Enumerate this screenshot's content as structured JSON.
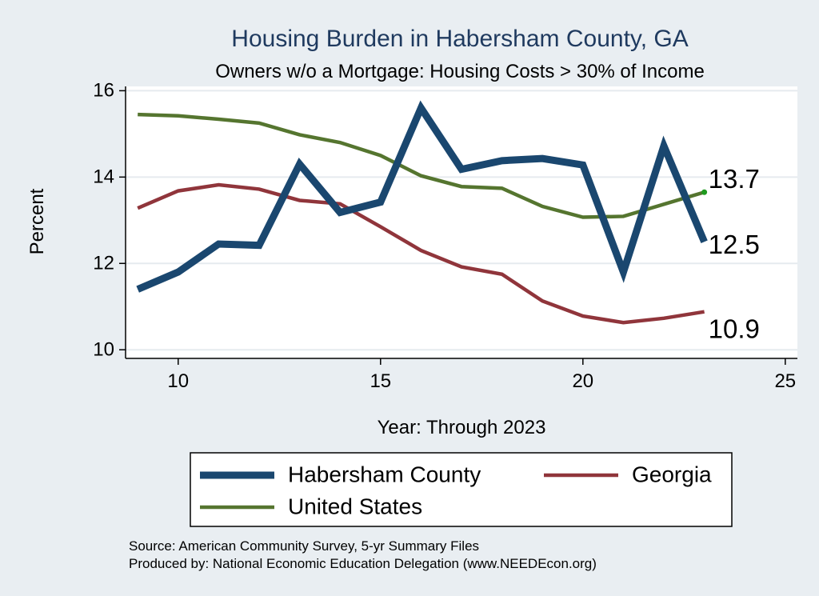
{
  "chart_data": {
    "type": "line",
    "title": "Housing Burden in Habersham County, GA",
    "subtitle": "Owners w/o a Mortgage: Housing Costs > 30% of Income",
    "xlabel": "Year: Through 2023",
    "ylabel": "Percent",
    "xlim": [
      8.7,
      25.3
    ],
    "ylim": [
      9.8,
      16.1
    ],
    "x_ticks": [
      10,
      15,
      20,
      25
    ],
    "y_ticks": [
      10,
      12,
      14,
      16
    ],
    "grid": true,
    "legend_position": "bottom",
    "x": [
      9,
      10,
      11,
      12,
      13,
      14,
      15,
      16,
      17,
      18,
      19,
      20,
      21,
      22,
      23
    ],
    "series": [
      {
        "name": "Habersham County",
        "color": "#1a476f",
        "values": [
          11.4,
          11.8,
          12.45,
          12.42,
          14.3,
          13.18,
          13.42,
          15.6,
          14.18,
          14.38,
          14.43,
          14.28,
          11.8,
          14.72,
          12.5
        ],
        "end_label": "12.5"
      },
      {
        "name": "Georgia",
        "color": "#90353b",
        "values": [
          13.28,
          13.68,
          13.82,
          13.72,
          13.46,
          13.38,
          12.85,
          12.3,
          11.92,
          11.75,
          11.13,
          10.78,
          10.63,
          10.73,
          10.88
        ],
        "end_label": "10.9"
      },
      {
        "name": "United States",
        "color": "#55752f",
        "values": [
          15.45,
          15.42,
          15.34,
          15.25,
          14.98,
          14.8,
          14.5,
          14.03,
          13.78,
          13.74,
          13.32,
          13.07,
          13.09,
          13.37,
          13.65
        ],
        "end_label": "13.7"
      }
    ]
  },
  "notes": {
    "source": "Source: American Community Survey, 5-yr Summary Files",
    "produced_by": "Produced by: National Economic Education Delegation (www.NEEDEcon.org)"
  }
}
